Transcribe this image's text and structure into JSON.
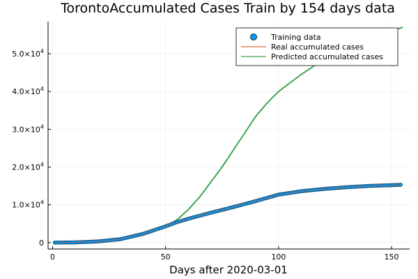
{
  "chart_data": {
    "type": "line",
    "title": "TorontoAccumulated Cases Train by 154 days data",
    "xlabel": "Days after 2020-03-01",
    "ylabel": "",
    "xlim": [
      -2,
      158
    ],
    "ylim": [
      -1700,
      58500
    ],
    "x_ticks": [
      {
        "value": 0,
        "label": "0"
      },
      {
        "value": 50,
        "label": "50"
      },
      {
        "value": 100,
        "label": "100"
      },
      {
        "value": 150,
        "label": "150"
      }
    ],
    "y_ticks": [
      {
        "value": 0,
        "label": "0",
        "mant": "",
        "exp": ""
      },
      {
        "value": 10000,
        "label": "1.0×10^4",
        "mant": "1.0×10",
        "exp": "4"
      },
      {
        "value": 20000,
        "label": "2.0×10^4",
        "mant": "2.0×10",
        "exp": "4"
      },
      {
        "value": 30000,
        "label": "3.0×10^4",
        "mant": "3.0×10",
        "exp": "4"
      },
      {
        "value": 40000,
        "label": "4.0×10^4",
        "mant": "4.0×10",
        "exp": "4"
      },
      {
        "value": 50000,
        "label": "5.0×10^4",
        "mant": "5.0×10",
        "exp": "4"
      }
    ],
    "grid": true,
    "legend_position": "top-right",
    "series": [
      {
        "name": "Training data",
        "kind": "scatter",
        "color": "#009af9",
        "x_start": 1,
        "x_end": 154,
        "anchors": [
          [
            1,
            0
          ],
          [
            10,
            50
          ],
          [
            20,
            300
          ],
          [
            30,
            900
          ],
          [
            40,
            2300
          ],
          [
            50,
            4300
          ],
          [
            55,
            5400
          ],
          [
            60,
            6300
          ],
          [
            70,
            7900
          ],
          [
            80,
            9400
          ],
          [
            90,
            11000
          ],
          [
            100,
            12700
          ],
          [
            110,
            13600
          ],
          [
            120,
            14200
          ],
          [
            130,
            14650
          ],
          [
            140,
            15000
          ],
          [
            150,
            15200
          ],
          [
            154,
            15300
          ]
        ]
      },
      {
        "name": "Real accumulated cases",
        "kind": "line",
        "color": "#e26f46",
        "x_start": 1,
        "x_end": 154,
        "anchors": [
          [
            1,
            0
          ],
          [
            10,
            50
          ],
          [
            20,
            300
          ],
          [
            30,
            900
          ],
          [
            40,
            2300
          ],
          [
            50,
            4300
          ],
          [
            55,
            5400
          ],
          [
            60,
            6300
          ],
          [
            70,
            7900
          ],
          [
            80,
            9400
          ],
          [
            90,
            11000
          ],
          [
            100,
            12700
          ],
          [
            110,
            13600
          ],
          [
            120,
            14200
          ],
          [
            130,
            14650
          ],
          [
            140,
            15000
          ],
          [
            150,
            15200
          ],
          [
            154,
            15300
          ]
        ]
      },
      {
        "name": "Predicted accumulated cases",
        "kind": "line",
        "color": "#3da44d",
        "x_start": 1,
        "x_end": 155,
        "anchors": [
          [
            1,
            0
          ],
          [
            10,
            40
          ],
          [
            20,
            280
          ],
          [
            30,
            900
          ],
          [
            40,
            2200
          ],
          [
            50,
            4300
          ],
          [
            55,
            6000
          ],
          [
            60,
            8700
          ],
          [
            65,
            12000
          ],
          [
            70,
            16000
          ],
          [
            75,
            20000
          ],
          [
            80,
            24500
          ],
          [
            85,
            29000
          ],
          [
            90,
            33500
          ],
          [
            95,
            37000
          ],
          [
            100,
            40000
          ],
          [
            110,
            44500
          ],
          [
            120,
            48500
          ],
          [
            130,
            51500
          ],
          [
            140,
            54000
          ],
          [
            150,
            56000
          ],
          [
            155,
            57000
          ]
        ]
      }
    ]
  }
}
